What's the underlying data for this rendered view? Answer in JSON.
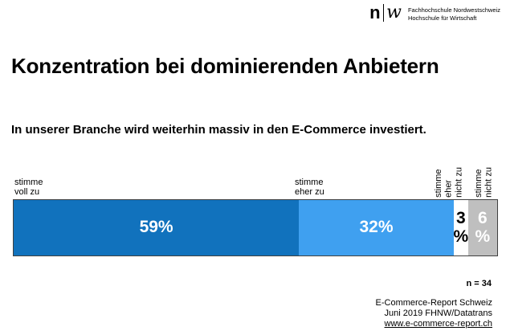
{
  "logo": {
    "mark_left": "n",
    "mark_right": "w",
    "org_line1": "Fachhochschule Nordwestschweiz",
    "org_line2": "Hochschule für Wirtschaft"
  },
  "title": "Konzentration bei dominierenden Anbietern",
  "statement": "In unserer Branche wird weiterhin massiv in den E-Commerce investiert.",
  "chart_data": {
    "type": "bar",
    "stacked": true,
    "orientation": "horizontal",
    "question": "In unserer Branche wird weiterhin massiv in den E-Commerce investiert.",
    "categories": [
      "stimme voll zu",
      "stimme eher zu",
      "stimme eher nicht zu",
      "stimme nicht zu"
    ],
    "values": [
      59,
      32,
      3,
      6
    ],
    "unit": "%",
    "xlim": [
      0,
      100
    ],
    "legend_position": "above-bar",
    "sample_size_label": "n = 34",
    "segments": [
      {
        "category": "stimme voll zu",
        "value": 59,
        "value_label": "59%",
        "axis_label": "stimme\nvoll zu",
        "axis_label_rotated": false,
        "color": "#1172BD",
        "text_color": "#FFFFFF"
      },
      {
        "category": "stimme eher zu",
        "value": 32,
        "value_label": "32%",
        "axis_label": "stimme\neher zu",
        "axis_label_rotated": false,
        "color": "#3FA0F0",
        "text_color": "#FFFFFF"
      },
      {
        "category": "stimme eher nicht zu",
        "value": 3,
        "value_label": "3\n%",
        "axis_label": "stimme\neher\nnicht zu",
        "axis_label_rotated": true,
        "color": "#FFFFFF",
        "text_color": "#000000"
      },
      {
        "category": "stimme nicht zu",
        "value": 6,
        "value_label": "6\n%",
        "axis_label": "stimme\nnicht zu",
        "axis_label_rotated": true,
        "color": "#BFBFBF",
        "text_color": "#FFFFFF"
      }
    ]
  },
  "footer": {
    "line1": "E-Commerce-Report Schweiz",
    "line2": "Juni 2019 FHNW/Datatrans",
    "link": "www.e-commerce-report.ch"
  }
}
